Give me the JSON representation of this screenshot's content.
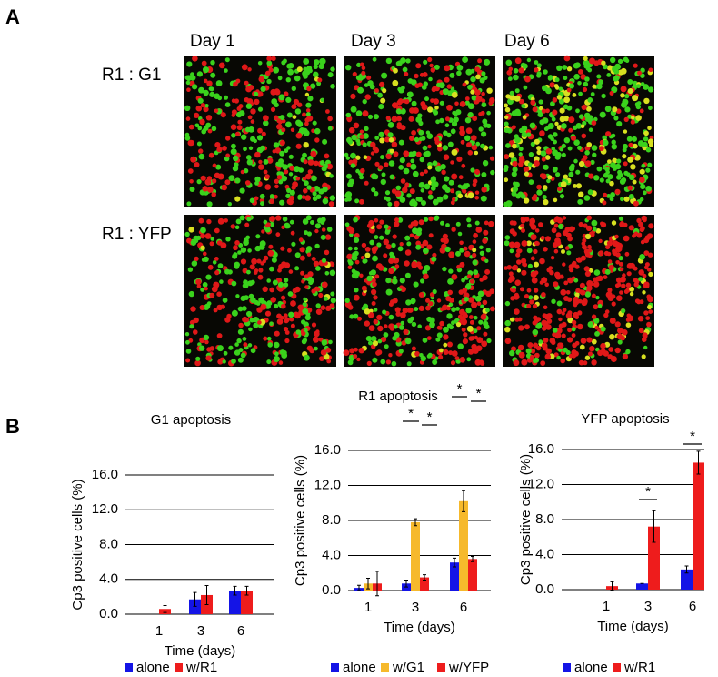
{
  "figure": {
    "panel_a": {
      "label": "A",
      "columns": [
        "Day 1",
        "Day 3",
        "Day 6"
      ],
      "rows": [
        "R1 : G1",
        "R1 : YFP"
      ]
    },
    "panel_b": {
      "label": "B"
    }
  },
  "chart_data": [
    {
      "type": "bar",
      "title": "G1 apoptosis",
      "x_label": "Time (days)",
      "y_label": "Cp3 positive cells (%)",
      "categories": [
        "1",
        "3",
        "6"
      ],
      "series": [
        {
          "name": "alone",
          "color": "#1414e6",
          "values": [
            0,
            1.7,
            2.7
          ],
          "errors": [
            0,
            0.8,
            0.5
          ]
        },
        {
          "name": "w/R1",
          "color": "#ee1c1c",
          "values": [
            0.6,
            2.2,
            2.7
          ],
          "errors": [
            0.4,
            1.1,
            0.5
          ]
        }
      ],
      "ylim": [
        0,
        16
      ],
      "yticks": [
        {
          "value": 0,
          "label": "0.0"
        },
        {
          "value": 4,
          "label": "4.0"
        },
        {
          "value": 8,
          "label": "8.0"
        },
        {
          "value": 12,
          "label": "12.0"
        },
        {
          "value": 16,
          "label": "16.0"
        }
      ],
      "grid": true,
      "annotations": []
    },
    {
      "type": "bar",
      "title": "R1 apoptosis",
      "x_label": "Time (days)",
      "y_label": "Cp3 positive cells (%)",
      "categories": [
        "1",
        "3",
        "6"
      ],
      "series": [
        {
          "name": "alone",
          "color": "#1414e6",
          "values": [
            0.3,
            0.8,
            3.2
          ],
          "errors": [
            0.3,
            0.4,
            0.5
          ]
        },
        {
          "name": "w/G1",
          "color": "#f6b92c",
          "values": [
            0.8,
            7.8,
            10.2
          ],
          "errors": [
            0.6,
            0.4,
            1.2
          ]
        },
        {
          "name": "w/YFP",
          "color": "#ee1c1c",
          "values": [
            0.8,
            1.5,
            3.6
          ],
          "errors": [
            1.4,
            0.3,
            0.3
          ]
        }
      ],
      "ylim": [
        0,
        16
      ],
      "yticks": [
        {
          "value": 0,
          "label": "0.0"
        },
        {
          "value": 4,
          "label": "4.0"
        },
        {
          "value": 8,
          "label": "8.0"
        },
        {
          "value": 12,
          "label": "12.0"
        },
        {
          "value": 16,
          "label": "16.0"
        }
      ],
      "grid": true,
      "annotations": [
        "*",
        "*",
        "*",
        "*"
      ]
    },
    {
      "type": "bar",
      "title": "YFP apoptosis",
      "x_label": "Time (days)",
      "y_label": "Cp3 positive cells (%)",
      "categories": [
        "1",
        "3",
        "6"
      ],
      "series": [
        {
          "name": "alone",
          "color": "#1414e6",
          "values": [
            0,
            0.7,
            2.3
          ],
          "errors": [
            0,
            0,
            0.4
          ]
        },
        {
          "name": "w/R1",
          "color": "#ee1c1c",
          "values": [
            0.4,
            7.2,
            14.5
          ],
          "errors": [
            0.5,
            1.8,
            1.3
          ]
        }
      ],
      "ylim": [
        0,
        16
      ],
      "yticks": [
        {
          "value": 0,
          "label": "0.0"
        },
        {
          "value": 4,
          "label": "4.0"
        },
        {
          "value": 8,
          "label": "8.0"
        },
        {
          "value": 12,
          "label": "12.0"
        },
        {
          "value": 16,
          "label": "16.0"
        }
      ],
      "grid": true,
      "annotations": [
        "*",
        "*"
      ]
    }
  ]
}
